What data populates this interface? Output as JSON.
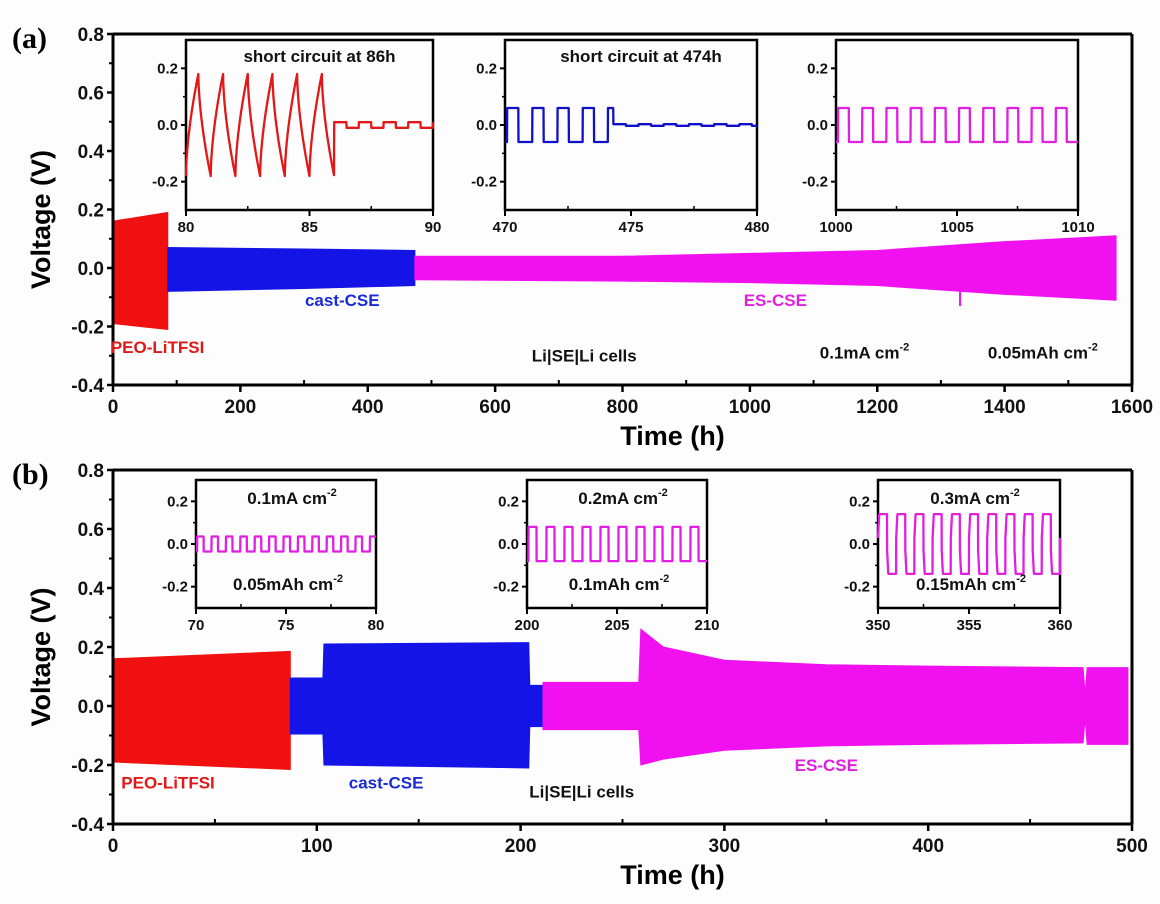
{
  "chart_data": [
    {
      "panel_label": "(a)",
      "type": "line",
      "title": "",
      "xlabel": "Time (h)",
      "ylabel": "Voltage (V)",
      "xlim": [
        0,
        1600
      ],
      "ylim": [
        -0.4,
        0.8
      ],
      "xticks": [
        0,
        200,
        400,
        600,
        800,
        1000,
        1200,
        1400,
        1600
      ],
      "yticks": [
        -0.4,
        -0.2,
        0.0,
        0.2,
        0.4,
        0.6,
        0.8
      ],
      "xtick_labels": [
        "0",
        "200",
        "400",
        "600",
        "800",
        "1000",
        "1200",
        "1400",
        "1600"
      ],
      "ytick_labels": [
        "-0.4",
        "-0.2",
        "0.0",
        "0.2",
        "0.4",
        "0.6",
        "0.8"
      ],
      "series": [
        {
          "name": "PEO-LiTFSI",
          "color": "#f01010",
          "envelope": [
            {
              "t": 0,
              "upper": 0.16,
              "lower": -0.19
            },
            {
              "t": 86,
              "upper": 0.19,
              "lower": -0.21
            }
          ],
          "after_short": [
            {
              "t": 86,
              "upper": 0.01,
              "lower": -0.01
            },
            {
              "t": 100,
              "upper": 0.01,
              "lower": -0.01
            }
          ]
        },
        {
          "name": "cast-CSE",
          "color": "#1414e6",
          "envelope": [
            {
              "t": 86,
              "upper": 0.07,
              "lower": -0.08
            },
            {
              "t": 300,
              "upper": 0.065,
              "lower": -0.07
            },
            {
              "t": 474,
              "upper": 0.06,
              "lower": -0.06
            }
          ],
          "after_short": [
            {
              "t": 474,
              "upper": 0.003,
              "lower": -0.003
            },
            {
              "t": 500,
              "upper": 0.003,
              "lower": -0.003
            }
          ]
        },
        {
          "name": "ES-CSE",
          "color": "#f010f0",
          "envelope": [
            {
              "t": 474,
              "upper": 0.04,
              "lower": -0.04
            },
            {
              "t": 800,
              "upper": 0.04,
              "lower": -0.045
            },
            {
              "t": 1000,
              "upper": 0.05,
              "lower": -0.05
            },
            {
              "t": 1200,
              "upper": 0.06,
              "lower": -0.06
            },
            {
              "t": 1400,
              "upper": 0.09,
              "lower": -0.09
            },
            {
              "t": 1575,
              "upper": 0.11,
              "lower": -0.11
            }
          ],
          "spike": {
            "t": 1330,
            "value": -0.13
          }
        }
      ],
      "annotations": [
        {
          "text": "PEO-LiTFSI",
          "color": "#e01818",
          "x": 70,
          "y": -0.29
        },
        {
          "text": "cast-CSE",
          "color": "#1a2ad6",
          "x": 360,
          "y": -0.13
        },
        {
          "text": "ES-CSE",
          "color": "#e020e0",
          "x": 1040,
          "y": -0.13
        },
        {
          "text": "Li|SE|Li cells",
          "color": "#111111",
          "x": 740,
          "y": -0.32
        },
        {
          "text": "0.1mA cm",
          "sup": "-2",
          "color": "#111111",
          "x": 1180,
          "y": -0.31
        },
        {
          "text": "0.05mAh cm",
          "sup": "-2",
          "color": "#111111",
          "x": 1460,
          "y": -0.31
        }
      ],
      "insets": [
        {
          "xlim": [
            80,
            90
          ],
          "ylim": [
            -0.3,
            0.3
          ],
          "xticks": [
            80,
            85,
            90
          ],
          "xtick_labels": [
            "80",
            "85",
            "90"
          ],
          "yticks": [
            -0.2,
            0.0,
            0.2
          ],
          "ytick_labels": [
            "-0.2",
            "0.0",
            "0.2"
          ],
          "title": "short circuit at 86h",
          "color": "#e01818",
          "waveform": "sawtooth",
          "period_h": 1.0,
          "amplitude_v": 0.2,
          "short_at_h": 86,
          "post_short_amplitude_v": 0.01
        },
        {
          "xlim": [
            470,
            480
          ],
          "ylim": [
            -0.3,
            0.3
          ],
          "xticks": [
            470,
            475,
            480
          ],
          "xtick_labels": [
            "470",
            "475",
            "480"
          ],
          "yticks": [
            -0.2,
            0.0,
            0.2
          ],
          "ytick_labels": [
            "-0.2",
            "0.0",
            "0.2"
          ],
          "title": "short circuit at 474h",
          "color": "#1010c8",
          "waveform": "square",
          "period_h": 1.0,
          "amplitude_v": 0.06,
          "short_at_h": 474.3,
          "post_short_amplitude_v": 0.003
        },
        {
          "xlim": [
            1000,
            1010
          ],
          "ylim": [
            -0.3,
            0.3
          ],
          "xticks": [
            1000,
            1005,
            1010
          ],
          "xtick_labels": [
            "1000",
            "1005",
            "1010"
          ],
          "yticks": [
            -0.2,
            0.0,
            0.2
          ],
          "ytick_labels": [
            "-0.2",
            "0.0",
            "0.2"
          ],
          "title": "",
          "color": "#e020e0",
          "waveform": "square",
          "period_h": 1.0,
          "amplitude_v": 0.06
        }
      ]
    },
    {
      "panel_label": "(b)",
      "type": "line",
      "title": "",
      "xlabel": "Time (h)",
      "ylabel": "Voltage (V)",
      "xlim": [
        0,
        500
      ],
      "ylim": [
        -0.4,
        0.8
      ],
      "xticks": [
        0,
        100,
        200,
        300,
        400,
        500
      ],
      "yticks": [
        -0.4,
        -0.2,
        0.0,
        0.2,
        0.4,
        0.6,
        0.8
      ],
      "xtick_labels": [
        "0",
        "100",
        "200",
        "300",
        "400",
        "500"
      ],
      "ytick_labels": [
        "-0.4",
        "-0.2",
        "0.0",
        "0.2",
        "0.4",
        "0.6",
        "0.8"
      ],
      "series": [
        {
          "name": "PEO-LiTFSI",
          "color": "#f01010",
          "envelope": [
            {
              "t": 0,
              "upper": 0.16,
              "lower": -0.19
            },
            {
              "t": 87,
              "upper": 0.185,
              "lower": -0.215
            }
          ],
          "after_short": [
            {
              "t": 87,
              "upper": 0.005,
              "lower": -0.005
            },
            {
              "t": 97,
              "upper": 0.005,
              "lower": -0.005
            }
          ]
        },
        {
          "name": "cast-CSE",
          "color": "#1414e6",
          "envelope": [
            {
              "t": 87,
              "upper": 0.095,
              "lower": -0.095
            },
            {
              "t": 103,
              "upper": 0.095,
              "lower": -0.095
            },
            {
              "t": 103.5,
              "upper": 0.21,
              "lower": -0.2
            },
            {
              "t": 204,
              "upper": 0.215,
              "lower": -0.21
            },
            {
              "t": 204.5,
              "upper": 0.07,
              "lower": -0.07
            },
            {
              "t": 211,
              "upper": 0.07,
              "lower": -0.07
            }
          ]
        },
        {
          "name": "ES-CSE",
          "color": "#f010f0",
          "envelope": [
            {
              "t": 211,
              "upper": 0.08,
              "lower": -0.08
            },
            {
              "t": 258,
              "upper": 0.08,
              "lower": -0.08
            },
            {
              "t": 259,
              "upper": 0.26,
              "lower": -0.2
            },
            {
              "t": 270,
              "upper": 0.2,
              "lower": -0.18
            },
            {
              "t": 300,
              "upper": 0.155,
              "lower": -0.15
            },
            {
              "t": 350,
              "upper": 0.14,
              "lower": -0.135
            },
            {
              "t": 400,
              "upper": 0.135,
              "lower": -0.13
            },
            {
              "t": 476,
              "upper": 0.13,
              "lower": -0.125
            },
            {
              "t": 477,
              "upper": 0.04,
              "lower": -0.04
            },
            {
              "t": 478,
              "upper": 0.13,
              "lower": -0.13
            },
            {
              "t": 498,
              "upper": 0.13,
              "lower": -0.13
            }
          ]
        }
      ],
      "annotations": [
        {
          "text": "PEO-LiTFSI",
          "color": "#e01818",
          "x": 27,
          "y": -0.28
        },
        {
          "text": "cast-CSE",
          "color": "#1a2ad6",
          "x": 134,
          "y": -0.28
        },
        {
          "text": "ES-CSE",
          "color": "#e020e0",
          "x": 350,
          "y": -0.22
        },
        {
          "text": "Li|SE|Li cells",
          "color": "#111111",
          "x": 230,
          "y": -0.31
        }
      ],
      "insets": [
        {
          "xlim": [
            70,
            80
          ],
          "ylim": [
            -0.3,
            0.3
          ],
          "xticks": [
            70,
            75,
            80
          ],
          "xtick_labels": [
            "70",
            "75",
            "80"
          ],
          "yticks": [
            -0.2,
            0.0,
            0.2
          ],
          "ytick_labels": [
            "-0.2",
            "0.0",
            "0.2"
          ],
          "title": "0.1mA cm",
          "title_sup": "-2",
          "subtitle": "0.05mAh cm",
          "subtitle_sup": "-2",
          "color": "#e020e0",
          "waveform": "square",
          "period_h": 0.8,
          "amplitude_v": 0.035
        },
        {
          "xlim": [
            200,
            210
          ],
          "ylim": [
            -0.3,
            0.3
          ],
          "xticks": [
            200,
            205,
            210
          ],
          "xtick_labels": [
            "200",
            "205",
            "210"
          ],
          "yticks": [
            -0.2,
            0.0,
            0.2
          ],
          "ytick_labels": [
            "-0.2",
            "0.0",
            "0.2"
          ],
          "title": "0.2mA cm",
          "title_sup": "-2",
          "subtitle": "0.1mAh cm",
          "subtitle_sup": "-2",
          "color": "#e020e0",
          "waveform": "square",
          "period_h": 1.0,
          "amplitude_v": 0.08
        },
        {
          "xlim": [
            350,
            360
          ],
          "ylim": [
            -0.3,
            0.3
          ],
          "xticks": [
            350,
            355,
            360
          ],
          "xtick_labels": [
            "350",
            "355",
            "360"
          ],
          "yticks": [
            -0.2,
            0.0,
            0.2
          ],
          "ytick_labels": [
            "-0.2",
            "0.0",
            "0.2"
          ],
          "title": "0.3mA cm",
          "title_sup": "-2",
          "subtitle": "0.15mAh cm",
          "subtitle_sup": "-2",
          "color": "#e020e0",
          "waveform": "rounded-square",
          "period_h": 1.0,
          "amplitude_v": 0.14
        }
      ]
    }
  ]
}
